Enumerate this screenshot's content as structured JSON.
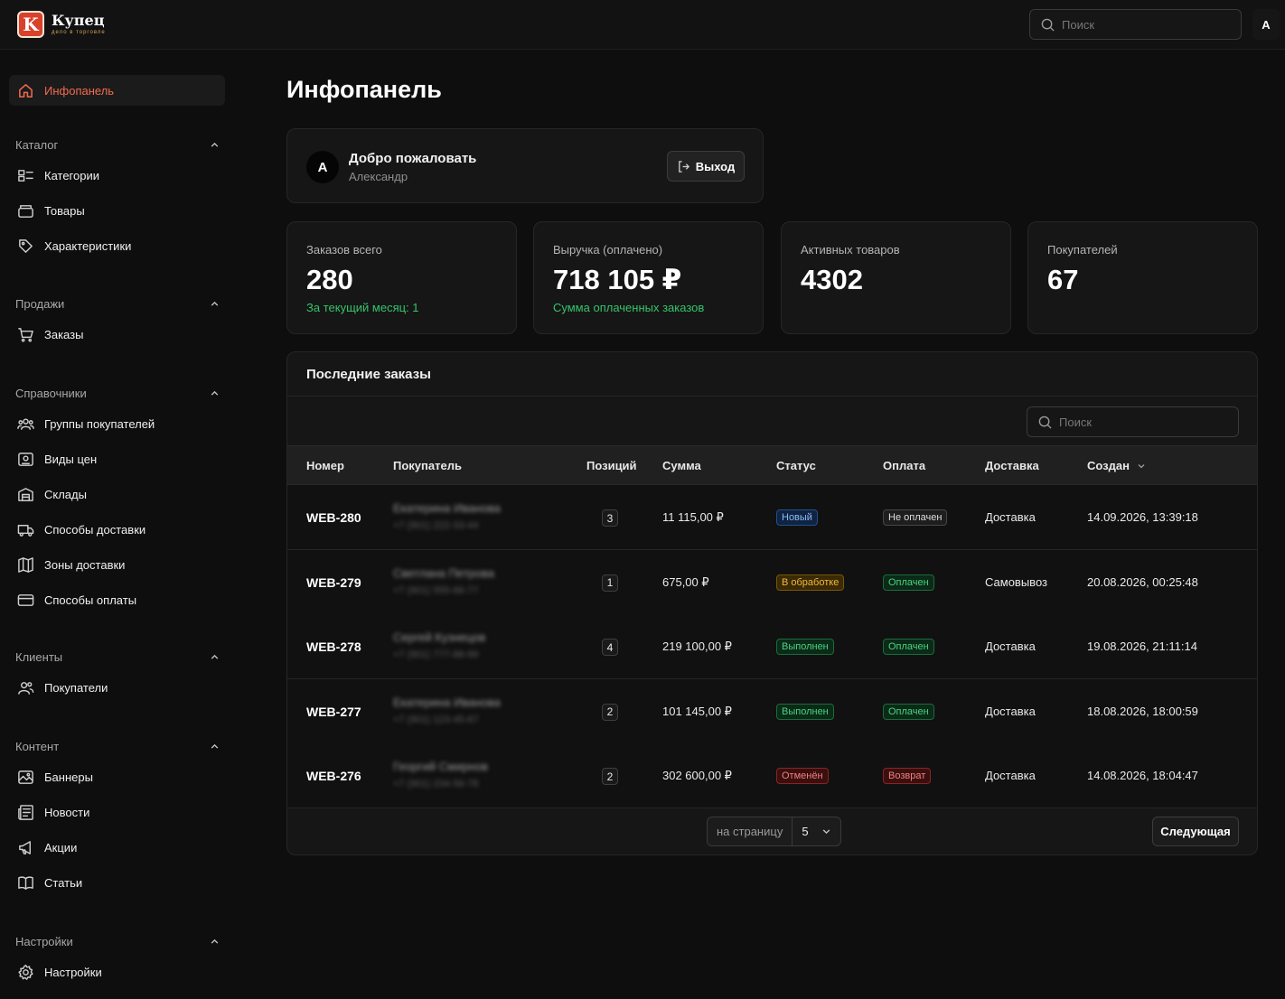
{
  "app": {
    "logo_letter": "K",
    "name": "Купец",
    "tagline": "дело в торговле",
    "search_placeholder": "Поиск",
    "user_initial": "A"
  },
  "sidebar": {
    "dashboard": {
      "label": "Инфопанель",
      "icon": "home-icon"
    },
    "groups": [
      {
        "title": "Каталог",
        "items": [
          {
            "label": "Категории",
            "icon": "categories-icon"
          },
          {
            "label": "Товары",
            "icon": "box-icon"
          },
          {
            "label": "Характеристики",
            "icon": "tag-icon"
          }
        ]
      },
      {
        "title": "Продажи",
        "items": [
          {
            "label": "Заказы",
            "icon": "cart-icon"
          }
        ]
      },
      {
        "title": "Справочники",
        "items": [
          {
            "label": "Группы покупателей",
            "icon": "users-group-icon"
          },
          {
            "label": "Виды цен",
            "icon": "price-icon"
          },
          {
            "label": "Склады",
            "icon": "warehouse-icon"
          },
          {
            "label": "Способы доставки",
            "icon": "truck-icon"
          },
          {
            "label": "Зоны доставки",
            "icon": "map-icon"
          },
          {
            "label": "Способы оплаты",
            "icon": "card-icon"
          }
        ]
      },
      {
        "title": "Клиенты",
        "items": [
          {
            "label": "Покупатели",
            "icon": "users-icon"
          }
        ]
      },
      {
        "title": "Контент",
        "items": [
          {
            "label": "Баннеры",
            "icon": "image-icon"
          },
          {
            "label": "Новости",
            "icon": "news-icon"
          },
          {
            "label": "Акции",
            "icon": "megaphone-icon"
          },
          {
            "label": "Статьи",
            "icon": "book-icon"
          }
        ]
      },
      {
        "title": "Настройки",
        "items": [
          {
            "label": "Настройки",
            "icon": "gear-icon"
          }
        ]
      }
    ]
  },
  "page": {
    "title": "Инфопанель"
  },
  "welcome": {
    "avatar": "A",
    "title": "Добро пожаловать",
    "name": "Александр",
    "logout_label": "Выход"
  },
  "stats": [
    {
      "label": "Заказов всего",
      "value": "280",
      "note": "За текущий месяц: 1"
    },
    {
      "label": "Выручка (оплачено)",
      "value": "718 105 ₽",
      "note": "Сумма оплаченных заказов"
    },
    {
      "label": "Активных товаров",
      "value": "4302",
      "note": ""
    },
    {
      "label": "Покупателей",
      "value": "67",
      "note": ""
    }
  ],
  "orders": {
    "title": "Последние заказы",
    "search_placeholder": "Поиск",
    "columns": [
      "Номер",
      "Покупатель",
      "Позиций",
      "Сумма",
      "Статус",
      "Оплата",
      "Доставка",
      "Создан"
    ],
    "rows": [
      {
        "number": "WEB-280",
        "customer": "Екатерина Иванова",
        "phone": "+7 (901) 222-33-44",
        "positions": "3",
        "sum": "11 115,00 ₽",
        "status": "Новый",
        "status_color": "blue",
        "payment": "Не оплачен",
        "payment_color": "gray",
        "delivery": "Доставка",
        "created": "14.09.2026, 13:39:18"
      },
      {
        "number": "WEB-279",
        "customer": "Светлана Петрова",
        "phone": "+7 (901) 555-66-77",
        "positions": "1",
        "sum": "675,00 ₽",
        "status": "В обработке",
        "status_color": "yellow",
        "payment": "Оплачен",
        "payment_color": "green",
        "delivery": "Самовывоз",
        "created": "20.08.2026, 00:25:48"
      },
      {
        "number": "WEB-278",
        "customer": "Сергей Кузнецов",
        "phone": "+7 (901) 777-88-99",
        "positions": "4",
        "sum": "219 100,00 ₽",
        "status": "Выполнен",
        "status_color": "green",
        "payment": "Оплачен",
        "payment_color": "green",
        "delivery": "Доставка",
        "created": "19.08.2026, 21:11:14"
      },
      {
        "number": "WEB-277",
        "customer": "Екатерина Иванова",
        "phone": "+7 (901) 123-45-67",
        "positions": "2",
        "sum": "101 145,00 ₽",
        "status": "Выполнен",
        "status_color": "green",
        "payment": "Оплачен",
        "payment_color": "green",
        "delivery": "Доставка",
        "created": "18.08.2026, 18:00:59"
      },
      {
        "number": "WEB-276",
        "customer": "Георгий Смирнов",
        "phone": "+7 (901) 234-56-78",
        "positions": "2",
        "sum": "302 600,00 ₽",
        "status": "Отменён",
        "status_color": "red",
        "payment": "Возврат",
        "payment_color": "red",
        "delivery": "Доставка",
        "created": "14.08.2026, 18:04:47"
      }
    ],
    "per_page_label": "на страницу",
    "per_page_value": "5",
    "next_label": "Следующая"
  },
  "colors": {
    "accent": "#f26a4f",
    "brand": "#d9412c",
    "success": "#35c46b",
    "background": "#0e0e0e"
  }
}
